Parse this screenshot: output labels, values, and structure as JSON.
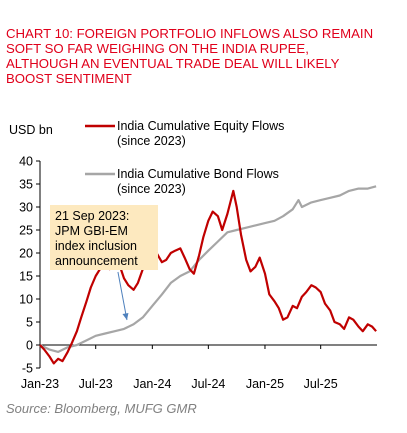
{
  "title_lines": [
    "CHART 10: FOREIGN PORTFOLIO INFLOWS ALSO REMAIN",
    "SOFT SO FAR WEIGHING ON THE INDIA RUPEE,",
    "ALTHOUGH AN EVENTUAL TRADE DEAL WILL LIKELY",
    "BOOST SENTIMENT"
  ],
  "source": "Source: Bloomberg, MUFG GMR",
  "colors": {
    "title": "#e0001b",
    "equity": "#c00000",
    "bond": "#a6a6a6",
    "annotation_bg": "#fde9bf",
    "arrow": "#4f81bd"
  },
  "chart_data": {
    "type": "line",
    "ylabel": "USD bn",
    "ylim": [
      -5,
      40
    ],
    "yticks": [
      -5,
      0,
      5,
      10,
      15,
      20,
      25,
      30,
      35,
      40
    ],
    "xlim": [
      "2023-01-01",
      "2025-12-31"
    ],
    "xticks": [
      {
        "label": "Jan-23",
        "date": "2023-01-01"
      },
      {
        "label": "Jul-23",
        "date": "2023-07-01"
      },
      {
        "label": "Jan-24",
        "date": "2024-01-01"
      },
      {
        "label": "Jul-24",
        "date": "2024-07-01"
      },
      {
        "label": "Jan-25",
        "date": "2025-01-01"
      },
      {
        "label": "Jul-25",
        "date": "2025-07-01"
      }
    ],
    "grid": false,
    "legend_position": "top-left",
    "series": [
      {
        "name": "India Cumulative Equity Flows (since 2023)",
        "legend_lines": [
          "India Cumulative Equity Flows",
          "(since 2023)"
        ],
        "color": "#c00000",
        "points": [
          [
            "2023-01-01",
            0.0
          ],
          [
            "2023-01-15",
            -1.0
          ],
          [
            "2023-02-01",
            -2.5
          ],
          [
            "2023-02-15",
            -4.0
          ],
          [
            "2023-03-01",
            -3.0
          ],
          [
            "2023-03-15",
            -3.5
          ],
          [
            "2023-04-01",
            -1.5
          ],
          [
            "2023-04-15",
            0.5
          ],
          [
            "2023-05-01",
            3.0
          ],
          [
            "2023-05-15",
            6.0
          ],
          [
            "2023-06-01",
            9.5
          ],
          [
            "2023-06-15",
            12.5
          ],
          [
            "2023-07-01",
            15.0
          ],
          [
            "2023-07-15",
            16.5
          ],
          [
            "2023-08-01",
            17.5
          ],
          [
            "2023-08-15",
            16.5
          ],
          [
            "2023-09-01",
            17.0
          ],
          [
            "2023-09-21",
            16.5
          ],
          [
            "2023-10-01",
            14.5
          ],
          [
            "2023-10-15",
            13.0
          ],
          [
            "2023-11-01",
            12.0
          ],
          [
            "2023-11-15",
            13.5
          ],
          [
            "2023-12-01",
            16.5
          ],
          [
            "2023-12-15",
            20.0
          ],
          [
            "2024-01-01",
            22.5
          ],
          [
            "2024-01-15",
            20.0
          ],
          [
            "2024-02-01",
            18.0
          ],
          [
            "2024-02-15",
            18.5
          ],
          [
            "2024-03-01",
            20.0
          ],
          [
            "2024-03-15",
            20.5
          ],
          [
            "2024-04-01",
            21.0
          ],
          [
            "2024-04-15",
            19.0
          ],
          [
            "2024-05-01",
            16.5
          ],
          [
            "2024-05-15",
            15.5
          ],
          [
            "2024-06-01",
            19.5
          ],
          [
            "2024-06-15",
            23.5
          ],
          [
            "2024-07-01",
            27.0
          ],
          [
            "2024-07-15",
            29.0
          ],
          [
            "2024-08-01",
            28.0
          ],
          [
            "2024-08-15",
            25.0
          ],
          [
            "2024-09-01",
            28.5
          ],
          [
            "2024-09-20",
            33.5
          ],
          [
            "2024-10-01",
            30.0
          ],
          [
            "2024-10-15",
            24.0
          ],
          [
            "2024-11-01",
            18.5
          ],
          [
            "2024-11-15",
            16.0
          ],
          [
            "2024-12-01",
            17.0
          ],
          [
            "2024-12-15",
            19.0
          ],
          [
            "2025-01-01",
            15.5
          ],
          [
            "2025-01-15",
            11.0
          ],
          [
            "2025-02-01",
            9.5
          ],
          [
            "2025-02-15",
            8.0
          ],
          [
            "2025-03-01",
            5.5
          ],
          [
            "2025-03-15",
            6.0
          ],
          [
            "2025-04-01",
            8.5
          ],
          [
            "2025-04-15",
            8.0
          ],
          [
            "2025-05-01",
            10.5
          ],
          [
            "2025-05-15",
            11.5
          ],
          [
            "2025-06-01",
            13.0
          ],
          [
            "2025-06-15",
            12.5
          ],
          [
            "2025-07-01",
            11.5
          ],
          [
            "2025-07-15",
            9.0
          ],
          [
            "2025-08-01",
            7.5
          ],
          [
            "2025-08-15",
            5.0
          ],
          [
            "2025-09-01",
            4.5
          ],
          [
            "2025-09-15",
            3.5
          ],
          [
            "2025-10-01",
            6.0
          ],
          [
            "2025-10-15",
            5.5
          ],
          [
            "2025-11-01",
            4.0
          ],
          [
            "2025-11-15",
            3.0
          ],
          [
            "2025-12-01",
            4.5
          ],
          [
            "2025-12-15",
            4.0
          ],
          [
            "2025-12-28",
            3.0
          ]
        ]
      },
      {
        "name": "India Cumulative Bond Flows (since 2023)",
        "legend_lines": [
          "India Cumulative Bond Flows",
          "(since 2023)"
        ],
        "color": "#a6a6a6",
        "points": [
          [
            "2023-01-01",
            0.0
          ],
          [
            "2023-02-01",
            -1.0
          ],
          [
            "2023-03-01",
            -1.5
          ],
          [
            "2023-04-01",
            -0.5
          ],
          [
            "2023-05-01",
            0.0
          ],
          [
            "2023-06-01",
            1.0
          ],
          [
            "2023-07-01",
            2.0
          ],
          [
            "2023-08-01",
            2.5
          ],
          [
            "2023-09-01",
            3.0
          ],
          [
            "2023-10-01",
            3.5
          ],
          [
            "2023-11-01",
            4.5
          ],
          [
            "2023-12-01",
            6.0
          ],
          [
            "2024-01-01",
            8.5
          ],
          [
            "2024-02-01",
            11.0
          ],
          [
            "2024-03-01",
            13.5
          ],
          [
            "2024-04-01",
            15.0
          ],
          [
            "2024-05-01",
            16.0
          ],
          [
            "2024-06-01",
            18.5
          ],
          [
            "2024-07-01",
            20.5
          ],
          [
            "2024-08-01",
            22.5
          ],
          [
            "2024-09-01",
            24.5
          ],
          [
            "2024-10-01",
            25.0
          ],
          [
            "2024-11-01",
            25.5
          ],
          [
            "2024-12-01",
            26.0
          ],
          [
            "2025-01-01",
            26.5
          ],
          [
            "2025-02-01",
            27.0
          ],
          [
            "2025-03-01",
            28.0
          ],
          [
            "2025-04-01",
            29.5
          ],
          [
            "2025-04-20",
            31.5
          ],
          [
            "2025-05-01",
            30.0
          ],
          [
            "2025-06-01",
            31.0
          ],
          [
            "2025-07-01",
            31.5
          ],
          [
            "2025-08-01",
            32.0
          ],
          [
            "2025-09-01",
            32.5
          ],
          [
            "2025-10-01",
            33.5
          ],
          [
            "2025-11-01",
            34.0
          ],
          [
            "2025-12-01",
            34.0
          ],
          [
            "2025-12-28",
            34.5
          ]
        ]
      }
    ],
    "annotation": {
      "lines": [
        "21 Sep 2023:",
        "JPM GBI-EM",
        "index inclusion",
        "announcement"
      ],
      "date": "2023-09-21"
    }
  }
}
